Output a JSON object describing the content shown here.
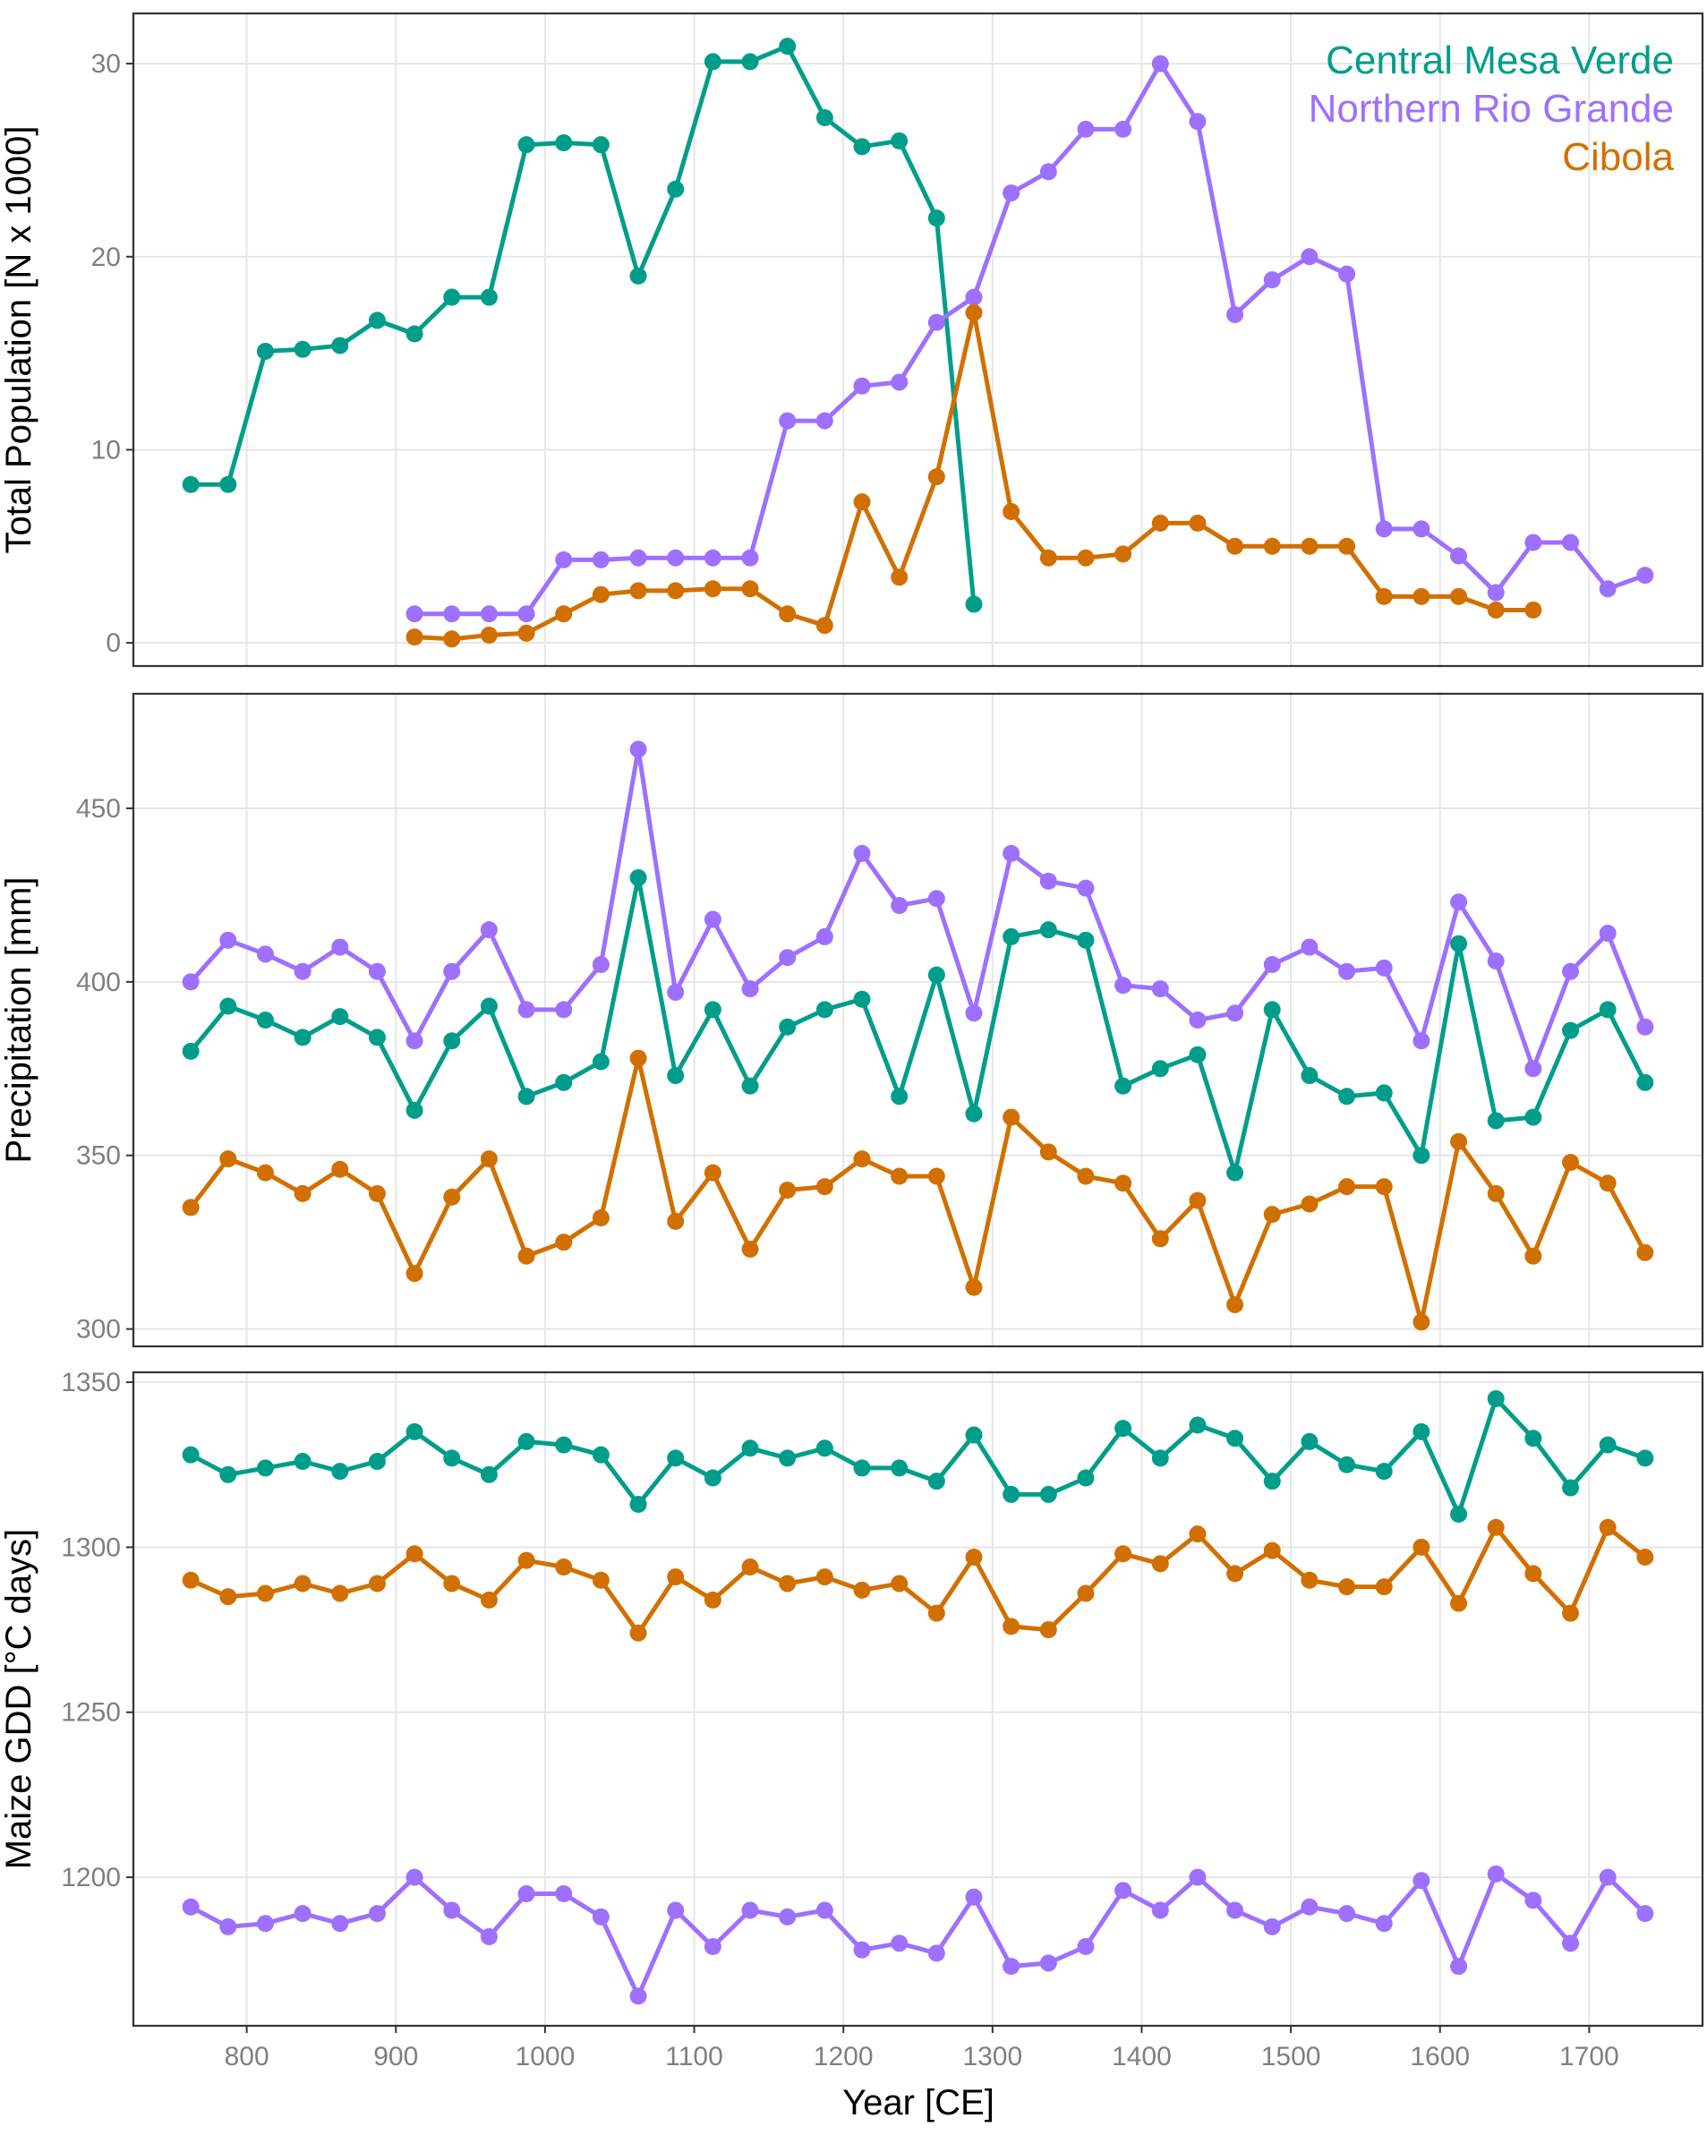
{
  "chart_data": {
    "type": "line",
    "xlabel": "Year [CE]",
    "xlim": [
      724,
      1776
    ],
    "xticks": [
      800,
      900,
      1000,
      1100,
      1200,
      1300,
      1400,
      1500,
      1600,
      1700
    ],
    "x": [
      762.5,
      787.5,
      812.5,
      837.5,
      862.5,
      887.5,
      912.5,
      937.5,
      962.5,
      987.5,
      1012.5,
      1037.5,
      1062.5,
      1087.5,
      1112.5,
      1137.5,
      1162.5,
      1187.5,
      1212.5,
      1237.5,
      1262.5,
      1287.5,
      1312.5,
      1337.5,
      1362.5,
      1387.5,
      1412.5,
      1437.5,
      1462.5,
      1487.5,
      1512.5,
      1537.5,
      1562.5,
      1587.5,
      1612.5,
      1637.5,
      1662.5,
      1687.5,
      1712.5,
      1737.5
    ],
    "legend": {
      "placement": "top-right",
      "entries": [
        {
          "name": "Central Mesa Verde",
          "color": "#009E8A"
        },
        {
          "name": "Northern Rio Grande",
          "color": "#9E70FF"
        },
        {
          "name": "Cibola",
          "color": "#D17000"
        }
      ]
    },
    "panels": [
      {
        "ylabel": "Total Population [N x 1000]",
        "ylim": [
          -1.2,
          32.6
        ],
        "yticks": [
          0,
          10,
          20,
          30
        ],
        "grid": true,
        "series": [
          {
            "name": "Central Mesa Verde",
            "color": "#009E8A",
            "values": [
              8.2,
              8.2,
              15.1,
              15.2,
              15.4,
              16.7,
              16.0,
              17.9,
              17.9,
              25.8,
              25.9,
              25.8,
              19.0,
              23.5,
              30.1,
              30.1,
              30.9,
              27.2,
              25.7,
              26.0,
              22.0,
              2.0,
              null,
              null,
              null,
              null,
              null,
              null,
              null,
              null,
              null,
              null,
              null,
              null,
              null,
              null,
              null,
              null,
              null,
              null
            ]
          },
          {
            "name": "Northern Rio Grande",
            "color": "#9E70FF",
            "values": [
              null,
              null,
              null,
              null,
              null,
              null,
              1.5,
              1.5,
              1.5,
              1.5,
              4.3,
              4.3,
              4.4,
              4.4,
              4.4,
              4.4,
              11.5,
              11.5,
              13.3,
              13.5,
              16.6,
              17.9,
              23.3,
              24.4,
              26.6,
              26.6,
              30.0,
              27.0,
              17.0,
              18.8,
              20.0,
              19.1,
              5.9,
              5.9,
              4.5,
              2.6,
              5.2,
              5.2,
              2.8,
              3.5
            ]
          },
          {
            "name": "Cibola",
            "color": "#D17000",
            "values": [
              null,
              null,
              null,
              null,
              null,
              null,
              0.3,
              0.2,
              0.4,
              0.5,
              1.5,
              2.5,
              2.7,
              2.7,
              2.8,
              2.8,
              1.5,
              0.9,
              7.3,
              3.4,
              8.6,
              17.1,
              6.8,
              4.4,
              4.4,
              4.6,
              6.2,
              6.2,
              5.0,
              5.0,
              5.0,
              5.0,
              2.4,
              2.4,
              2.4,
              1.7,
              1.7,
              null,
              null,
              null
            ]
          }
        ]
      },
      {
        "ylabel": "Precipitation [mm]",
        "ylim": [
          295,
          483
        ],
        "yticks": [
          300,
          350,
          400,
          450
        ],
        "grid": true,
        "series": [
          {
            "name": "Central Mesa Verde",
            "color": "#009E8A",
            "values": [
              380,
              393,
              389,
              384,
              390,
              384,
              363,
              383,
              393,
              367,
              371,
              377,
              430,
              373,
              392,
              370,
              387,
              392,
              395,
              367,
              402,
              362,
              413,
              415,
              412,
              370,
              375,
              379,
              345,
              392,
              373,
              367,
              368,
              350,
              411,
              360,
              361,
              386,
              392,
              371
            ]
          },
          {
            "name": "Northern Rio Grande",
            "color": "#9E70FF",
            "values": [
              400,
              412,
              408,
              403,
              410,
              403,
              383,
              403,
              415,
              392,
              392,
              405,
              467,
              397,
              418,
              398,
              407,
              413,
              437,
              422,
              424,
              391,
              437,
              429,
              427,
              399,
              398,
              389,
              391,
              405,
              410,
              403,
              404,
              383,
              423,
              406,
              375,
              403,
              414,
              387
            ]
          },
          {
            "name": "Cibola",
            "color": "#D17000",
            "values": [
              335,
              349,
              345,
              339,
              346,
              339,
              316,
              338,
              349,
              321,
              325,
              332,
              378,
              331,
              345,
              323,
              340,
              341,
              349,
              344,
              344,
              312,
              361,
              351,
              344,
              342,
              326,
              337,
              307,
              333,
              336,
              341,
              341,
              302,
              354,
              339,
              321,
              348,
              342,
              322
            ]
          }
        ]
      },
      {
        "ylabel": "Maize GDD [°C days]",
        "ylim": [
          1155,
          1353
        ],
        "yticks": [
          1200,
          1250,
          1300,
          1350
        ],
        "grid": true,
        "series": [
          {
            "name": "Central Mesa Verde",
            "color": "#009E8A",
            "values": [
              1328,
              1322,
              1324,
              1326,
              1323,
              1326,
              1335,
              1327,
              1322,
              1332,
              1331,
              1328,
              1313,
              1327,
              1321,
              1330,
              1327,
              1330,
              1324,
              1324,
              1320,
              1334,
              1316,
              1316,
              1321,
              1336,
              1327,
              1337,
              1333,
              1320,
              1332,
              1325,
              1323,
              1335,
              1310,
              1345,
              1333,
              1318,
              1331,
              1327
            ]
          },
          {
            "name": "Northern Rio Grande",
            "color": "#9E70FF",
            "values": [
              1191,
              1185,
              1186,
              1189,
              1186,
              1189,
              1200,
              1190,
              1182,
              1195,
              1195,
              1188,
              1164,
              1190,
              1179,
              1190,
              1188,
              1190,
              1178,
              1180,
              1177,
              1194,
              1173,
              1174,
              1179,
              1196,
              1190,
              1200,
              1190,
              1185,
              1191,
              1189,
              1186,
              1199,
              1173,
              1201,
              1193,
              1180,
              1200,
              1189
            ]
          },
          {
            "name": "Cibola",
            "color": "#D17000",
            "values": [
              1290,
              1285,
              1286,
              1289,
              1286,
              1289,
              1298,
              1289,
              1284,
              1296,
              1294,
              1290,
              1274,
              1291,
              1284,
              1294,
              1289,
              1291,
              1287,
              1289,
              1280,
              1297,
              1276,
              1275,
              1286,
              1298,
              1295,
              1304,
              1292,
              1299,
              1290,
              1288,
              1288,
              1300,
              1283,
              1306,
              1292,
              1280,
              1306,
              1297
            ]
          }
        ]
      }
    ]
  }
}
